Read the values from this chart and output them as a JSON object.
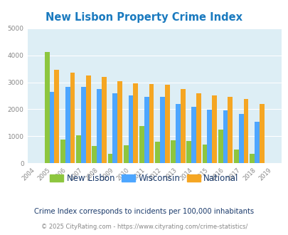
{
  "title": "New Lisbon Property Crime Index",
  "years": [
    "2004",
    "2005",
    "2006",
    "2007",
    "2008",
    "2009",
    "2010",
    "2011",
    "2012",
    "2013",
    "2014",
    "2015",
    "2016",
    "2017",
    "2018",
    "2019"
  ],
  "new_lisbon": [
    0,
    4120,
    870,
    1050,
    650,
    350,
    670,
    1380,
    800,
    840,
    820,
    690,
    1260,
    510,
    360,
    0
  ],
  "wisconsin": [
    0,
    2650,
    2820,
    2820,
    2760,
    2600,
    2500,
    2450,
    2450,
    2190,
    2100,
    1990,
    1960,
    1840,
    1540,
    0
  ],
  "national": [
    0,
    3460,
    3350,
    3250,
    3210,
    3040,
    2950,
    2930,
    2900,
    2760,
    2600,
    2500,
    2460,
    2370,
    2200,
    0
  ],
  "new_lisbon_color": "#8dc63f",
  "wisconsin_color": "#4da6ff",
  "national_color": "#f5a623",
  "bg_color": "#ddeef5",
  "title_color": "#1a7abf",
  "ylim": [
    0,
    5000
  ],
  "yticks": [
    0,
    1000,
    2000,
    3000,
    4000,
    5000
  ],
  "subtitle": "Crime Index corresponds to incidents per 100,000 inhabitants",
  "footer": "© 2025 CityRating.com - https://www.cityrating.com/crime-statistics/",
  "legend_labels": [
    "New Lisbon",
    "Wisconsin",
    "National"
  ],
  "subtitle_color": "#1a3a6b",
  "footer_color": "#888888",
  "tick_color": "#888888"
}
